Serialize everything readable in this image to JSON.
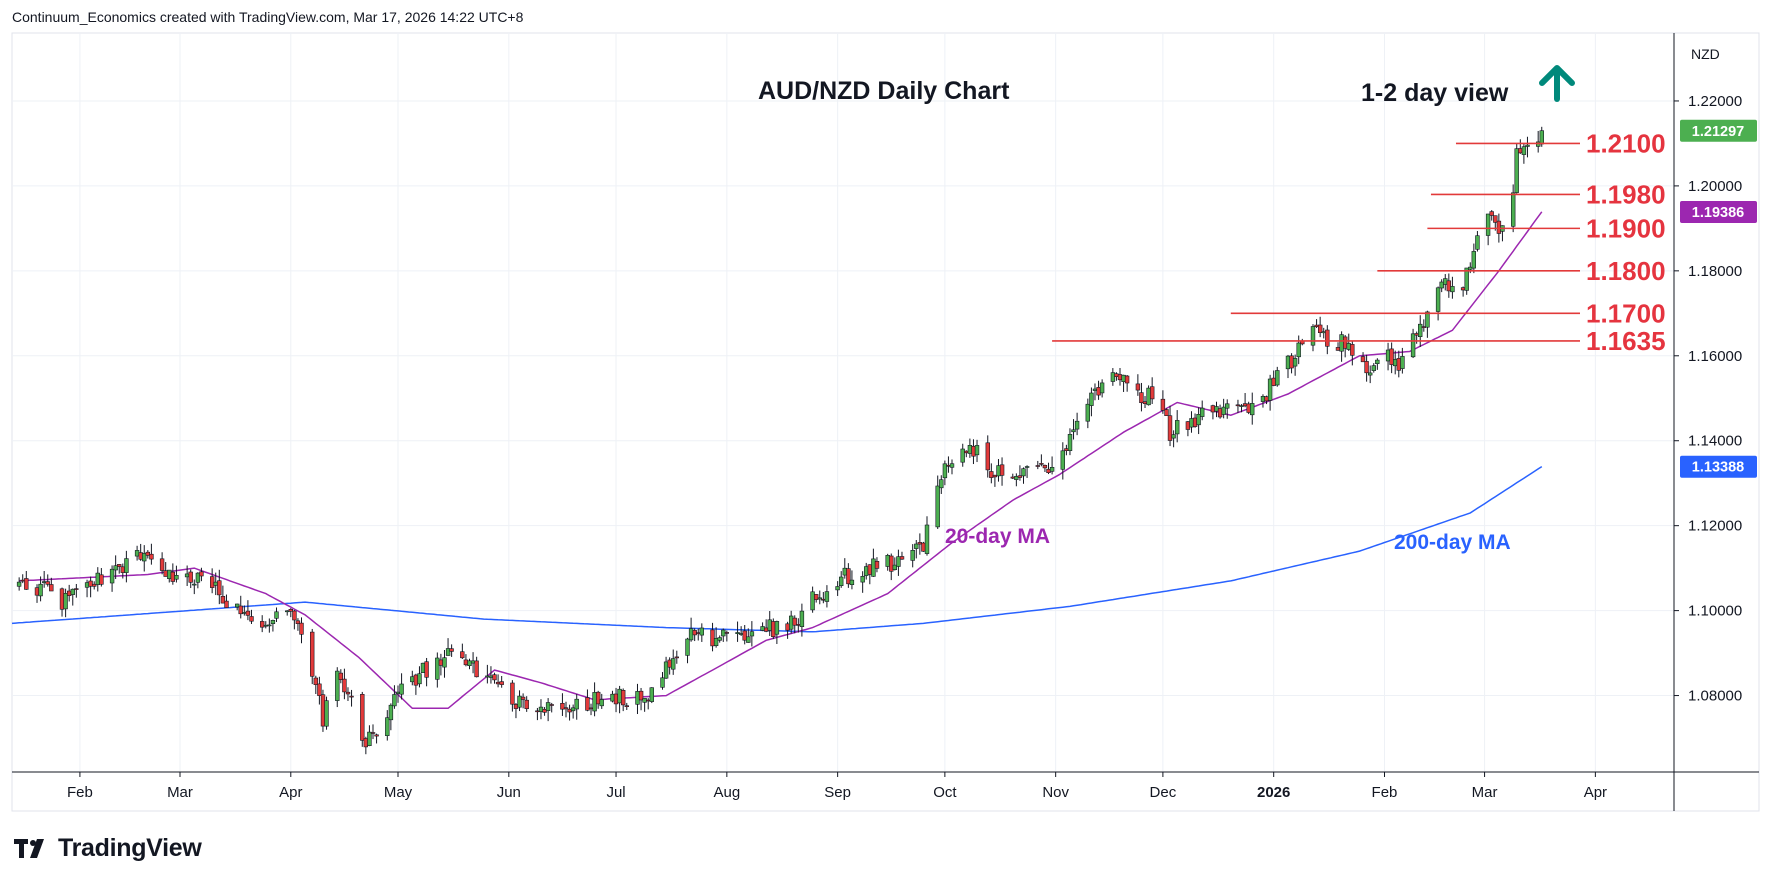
{
  "header": {
    "text": "Continuum_Economics created with TradingView.com, Mar 17, 2026 14:22 UTC+8"
  },
  "footer": {
    "logo_text": "TradingView"
  },
  "chart_data": {
    "type": "candlestick",
    "title": "AUD/NZD Daily Chart",
    "view_label": "1-2 day view",
    "view_direction": "up",
    "currency_label": "NZD",
    "y_ticks": [
      "1.22000",
      "1.20000",
      "1.18000",
      "1.16000",
      "1.14000",
      "1.12000",
      "1.10000",
      "1.08000"
    ],
    "y_range": [
      1.062,
      1.236
    ],
    "x_ticks": [
      "Feb",
      "Mar",
      "Apr",
      "May",
      "Jun",
      "Jul",
      "Aug",
      "Sep",
      "Oct",
      "Nov",
      "Dec",
      "2026",
      "Feb",
      "Mar",
      "Apr"
    ],
    "x_range": [
      "2025-01-13",
      "2026-04-23"
    ],
    "grid": true,
    "price_badges": [
      {
        "text": "1.21297",
        "value": 1.21297,
        "color": "#4caf50"
      },
      {
        "text": "1.19386",
        "value": 1.19386,
        "color": "#9c27b0"
      },
      {
        "text": "1.13388",
        "value": 1.13388,
        "color": "#2962ff"
      }
    ],
    "levels": [
      {
        "label": "1.2100",
        "value": 1.21,
        "from": "2026-02-21"
      },
      {
        "label": "1.1980",
        "value": 1.198,
        "from": "2026-02-14"
      },
      {
        "label": "1.1900",
        "value": 1.19,
        "from": "2026-02-13"
      },
      {
        "label": "1.1800",
        "value": 1.18,
        "from": "2026-01-30"
      },
      {
        "label": "1.1700",
        "value": 1.17,
        "from": "2025-12-20"
      },
      {
        "label": "1.1635",
        "value": 1.1635,
        "from": "2025-10-31"
      }
    ],
    "annotations": {
      "ma20_label": "20-day MA",
      "ma200_label": "200-day MA"
    },
    "colors": {
      "up": "#4caf50",
      "down": "#e23a3a",
      "ma20": "#9c27b0",
      "ma200": "#2962ff",
      "levels": "#e23a3a",
      "arrow": "#00897b"
    },
    "anchors": [
      [
        "2025-01-15",
        1.108
      ],
      [
        "2025-01-28",
        1.102
      ],
      [
        "2025-02-08",
        1.108
      ],
      [
        "2025-02-17",
        1.113
      ],
      [
        "2025-02-27",
        1.109
      ],
      [
        "2025-03-10",
        1.106
      ],
      [
        "2025-03-24",
        1.094
      ],
      [
        "2025-04-01",
        1.102
      ],
      [
        "2025-04-06",
        1.09
      ],
      [
        "2025-04-10",
        1.074
      ],
      [
        "2025-04-14",
        1.088
      ],
      [
        "2025-04-22",
        1.068
      ],
      [
        "2025-05-02",
        1.082
      ],
      [
        "2025-05-16",
        1.09
      ],
      [
        "2025-05-28",
        1.084
      ],
      [
        "2025-06-05",
        1.077
      ],
      [
        "2025-06-20",
        1.077
      ],
      [
        "2025-06-27",
        1.08
      ],
      [
        "2025-07-10",
        1.079
      ],
      [
        "2025-07-22",
        1.095
      ],
      [
        "2025-07-30",
        1.093
      ],
      [
        "2025-08-08",
        1.095
      ],
      [
        "2025-08-20",
        1.097
      ],
      [
        "2025-08-25",
        1.103
      ],
      [
        "2025-09-05",
        1.109
      ],
      [
        "2025-09-15",
        1.111
      ],
      [
        "2025-09-25",
        1.116
      ],
      [
        "2025-09-30",
        1.132
      ],
      [
        "2025-10-10",
        1.139
      ],
      [
        "2025-10-15",
        1.132
      ],
      [
        "2025-10-26",
        1.134
      ],
      [
        "2025-10-31",
        1.133
      ],
      [
        "2025-11-05",
        1.14
      ],
      [
        "2025-11-15",
        1.155
      ],
      [
        "2025-11-20",
        1.156
      ],
      [
        "2025-11-25",
        1.149
      ],
      [
        "2025-11-30",
        1.152
      ],
      [
        "2025-12-03",
        1.142
      ],
      [
        "2025-12-15",
        1.148
      ],
      [
        "2025-12-25",
        1.146
      ],
      [
        "2026-01-05",
        1.158
      ],
      [
        "2026-01-12",
        1.165
      ],
      [
        "2026-01-20",
        1.163
      ],
      [
        "2026-01-27",
        1.156
      ],
      [
        "2026-01-31",
        1.162
      ],
      [
        "2026-02-04",
        1.157
      ],
      [
        "2026-02-08",
        1.162
      ],
      [
        "2026-02-14",
        1.17
      ],
      [
        "2026-02-18",
        1.178
      ],
      [
        "2026-02-22",
        1.173
      ],
      [
        "2026-02-25",
        1.183
      ],
      [
        "2026-02-28",
        1.188
      ],
      [
        "2026-03-02",
        1.193
      ],
      [
        "2026-03-05",
        1.188
      ],
      [
        "2026-03-08",
        1.193
      ],
      [
        "2026-03-10",
        1.207
      ],
      [
        "2026-03-13",
        1.209
      ],
      [
        "2026-03-17",
        1.213
      ]
    ],
    "ma20_anchors": [
      [
        "2025-01-15",
        1.107
      ],
      [
        "2025-02-20",
        1.1085
      ],
      [
        "2025-03-05",
        1.11
      ],
      [
        "2025-03-25",
        1.104
      ],
      [
        "2025-04-05",
        1.099
      ],
      [
        "2025-04-20",
        1.089
      ],
      [
        "2025-05-05",
        1.077
      ],
      [
        "2025-05-15",
        1.077
      ],
      [
        "2025-05-28",
        1.086
      ],
      [
        "2025-06-10",
        1.083
      ],
      [
        "2025-06-25",
        1.079
      ],
      [
        "2025-07-15",
        1.08
      ],
      [
        "2025-07-28",
        1.086
      ],
      [
        "2025-08-12",
        1.093
      ],
      [
        "2025-08-25",
        1.096
      ],
      [
        "2025-09-15",
        1.104
      ],
      [
        "2025-10-03",
        1.116
      ],
      [
        "2025-10-20",
        1.126
      ],
      [
        "2025-11-02",
        1.132
      ],
      [
        "2025-11-20",
        1.142
      ],
      [
        "2025-12-05",
        1.149
      ],
      [
        "2025-12-20",
        1.146
      ],
      [
        "2026-01-05",
        1.151
      ],
      [
        "2026-01-25",
        1.16
      ],
      [
        "2026-02-08",
        1.161
      ],
      [
        "2026-02-20",
        1.166
      ],
      [
        "2026-03-05",
        1.18
      ],
      [
        "2026-03-17",
        1.1939
      ]
    ],
    "ma200_anchors": [
      [
        "2025-01-13",
        1.097
      ],
      [
        "2025-02-15",
        1.099
      ],
      [
        "2025-04-05",
        1.102
      ],
      [
        "2025-05-25",
        1.098
      ],
      [
        "2025-07-15",
        1.096
      ],
      [
        "2025-08-25",
        1.095
      ],
      [
        "2025-09-25",
        1.097
      ],
      [
        "2025-11-05",
        1.101
      ],
      [
        "2025-12-20",
        1.107
      ],
      [
        "2026-01-25",
        1.114
      ],
      [
        "2026-02-25",
        1.123
      ],
      [
        "2026-03-17",
        1.1339
      ]
    ]
  }
}
